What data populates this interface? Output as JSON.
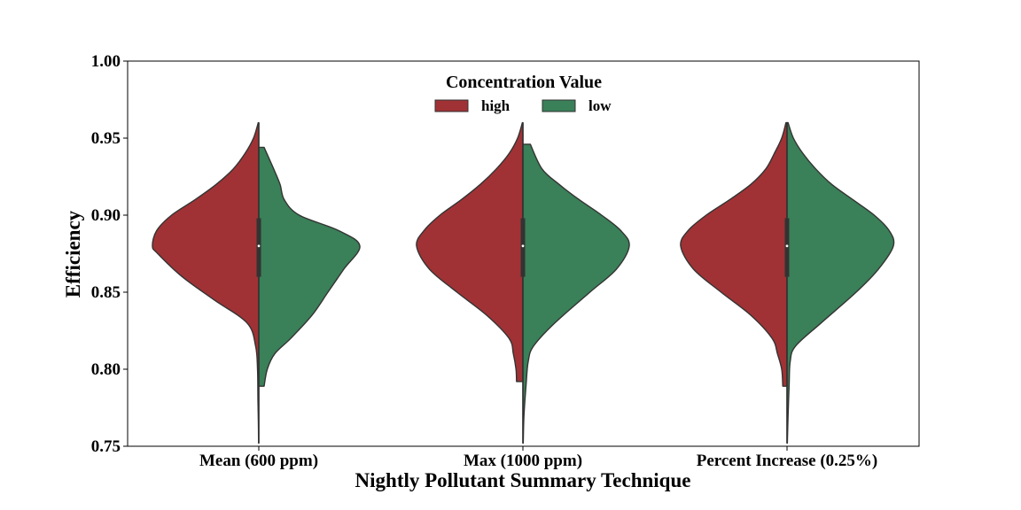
{
  "chart_data": {
    "type": "violin",
    "split": true,
    "xlabel": "Nightly Pollutant Summary Technique",
    "ylabel": "Efficiency",
    "ylim": [
      0.75,
      1.0
    ],
    "yticks": [
      "0.75",
      "0.80",
      "0.85",
      "0.90",
      "0.95",
      "1.00"
    ],
    "categories": [
      "Mean (600 ppm)",
      "Max (1000 ppm)",
      "Percent Increase (0.25%)"
    ],
    "legend": {
      "title": "Concentration Value",
      "placement": "upper center",
      "entries": [
        "high",
        "low"
      ]
    },
    "colors": {
      "high": "#a03235",
      "low": "#3a8058",
      "outline": "#333333"
    },
    "series": [
      {
        "name": "high",
        "violins": [
          {
            "min": 0.752,
            "max": 0.96,
            "median": 0.88,
            "q1": 0.86,
            "q3": 0.898,
            "profile": [
              [
                0.752,
                0.002
              ],
              [
                0.765,
                0.004
              ],
              [
                0.78,
                0.008
              ],
              [
                0.8,
                0.012
              ],
              [
                0.815,
                0.03
              ],
              [
                0.83,
                0.11
              ],
              [
                0.845,
                0.42
              ],
              [
                0.86,
                0.72
              ],
              [
                0.875,
                0.95
              ],
              [
                0.88,
                1.0
              ],
              [
                0.89,
                0.96
              ],
              [
                0.9,
                0.82
              ],
              [
                0.91,
                0.6
              ],
              [
                0.92,
                0.4
              ],
              [
                0.93,
                0.24
              ],
              [
                0.94,
                0.13
              ],
              [
                0.95,
                0.05
              ],
              [
                0.96,
                0.005
              ]
            ]
          },
          {
            "min": 0.792,
            "max": 0.96,
            "median": 0.88,
            "q1": 0.86,
            "q3": 0.898,
            "profile": [
              [
                0.792,
                0.06
              ],
              [
                0.8,
                0.065
              ],
              [
                0.81,
                0.09
              ],
              [
                0.82,
                0.13
              ],
              [
                0.835,
                0.34
              ],
              [
                0.85,
                0.62
              ],
              [
                0.865,
                0.88
              ],
              [
                0.88,
                1.0
              ],
              [
                0.89,
                0.93
              ],
              [
                0.9,
                0.78
              ],
              [
                0.91,
                0.58
              ],
              [
                0.92,
                0.4
              ],
              [
                0.93,
                0.25
              ],
              [
                0.94,
                0.13
              ],
              [
                0.95,
                0.05
              ],
              [
                0.96,
                0.005
              ]
            ]
          },
          {
            "min": 0.789,
            "max": 0.96,
            "median": 0.88,
            "q1": 0.86,
            "q3": 0.898,
            "profile": [
              [
                0.789,
                0.04
              ],
              [
                0.8,
                0.05
              ],
              [
                0.81,
                0.09
              ],
              [
                0.82,
                0.14
              ],
              [
                0.835,
                0.34
              ],
              [
                0.85,
                0.62
              ],
              [
                0.865,
                0.88
              ],
              [
                0.88,
                1.0
              ],
              [
                0.89,
                0.93
              ],
              [
                0.9,
                0.76
              ],
              [
                0.91,
                0.54
              ],
              [
                0.92,
                0.34
              ],
              [
                0.93,
                0.2
              ],
              [
                0.94,
                0.12
              ],
              [
                0.95,
                0.05
              ],
              [
                0.96,
                0.01
              ]
            ]
          }
        ]
      },
      {
        "name": "low",
        "violins": [
          {
            "min": 0.789,
            "max": 0.944,
            "median": 0.88,
            "q1": 0.86,
            "q3": 0.898,
            "profile": [
              [
                0.789,
                0.05
              ],
              [
                0.8,
                0.08
              ],
              [
                0.81,
                0.15
              ],
              [
                0.82,
                0.3
              ],
              [
                0.835,
                0.5
              ],
              [
                0.85,
                0.65
              ],
              [
                0.865,
                0.8
              ],
              [
                0.88,
                0.95
              ],
              [
                0.89,
                0.75
              ],
              [
                0.9,
                0.38
              ],
              [
                0.91,
                0.24
              ],
              [
                0.92,
                0.2
              ],
              [
                0.93,
                0.14
              ],
              [
                0.944,
                0.05
              ]
            ]
          },
          {
            "min": 0.752,
            "max": 0.946,
            "median": 0.88,
            "q1": 0.86,
            "q3": 0.898,
            "profile": [
              [
                0.752,
                0.003
              ],
              [
                0.77,
                0.01
              ],
              [
                0.79,
                0.03
              ],
              [
                0.805,
                0.05
              ],
              [
                0.815,
                0.1
              ],
              [
                0.83,
                0.3
              ],
              [
                0.85,
                0.63
              ],
              [
                0.865,
                0.88
              ],
              [
                0.88,
                1.0
              ],
              [
                0.89,
                0.92
              ],
              [
                0.9,
                0.74
              ],
              [
                0.91,
                0.53
              ],
              [
                0.92,
                0.34
              ],
              [
                0.93,
                0.18
              ],
              [
                0.946,
                0.07
              ]
            ]
          },
          {
            "min": 0.752,
            "max": 0.96,
            "median": 0.88,
            "q1": 0.86,
            "q3": 0.898,
            "profile": [
              [
                0.752,
                0.003
              ],
              [
                0.77,
                0.01
              ],
              [
                0.79,
                0.02
              ],
              [
                0.805,
                0.03
              ],
              [
                0.815,
                0.08
              ],
              [
                0.83,
                0.32
              ],
              [
                0.85,
                0.65
              ],
              [
                0.865,
                0.86
              ],
              [
                0.88,
                1.0
              ],
              [
                0.89,
                0.96
              ],
              [
                0.9,
                0.82
              ],
              [
                0.91,
                0.62
              ],
              [
                0.92,
                0.42
              ],
              [
                0.93,
                0.27
              ],
              [
                0.94,
                0.15
              ],
              [
                0.95,
                0.06
              ],
              [
                0.96,
                0.01
              ]
            ]
          }
        ]
      }
    ]
  }
}
